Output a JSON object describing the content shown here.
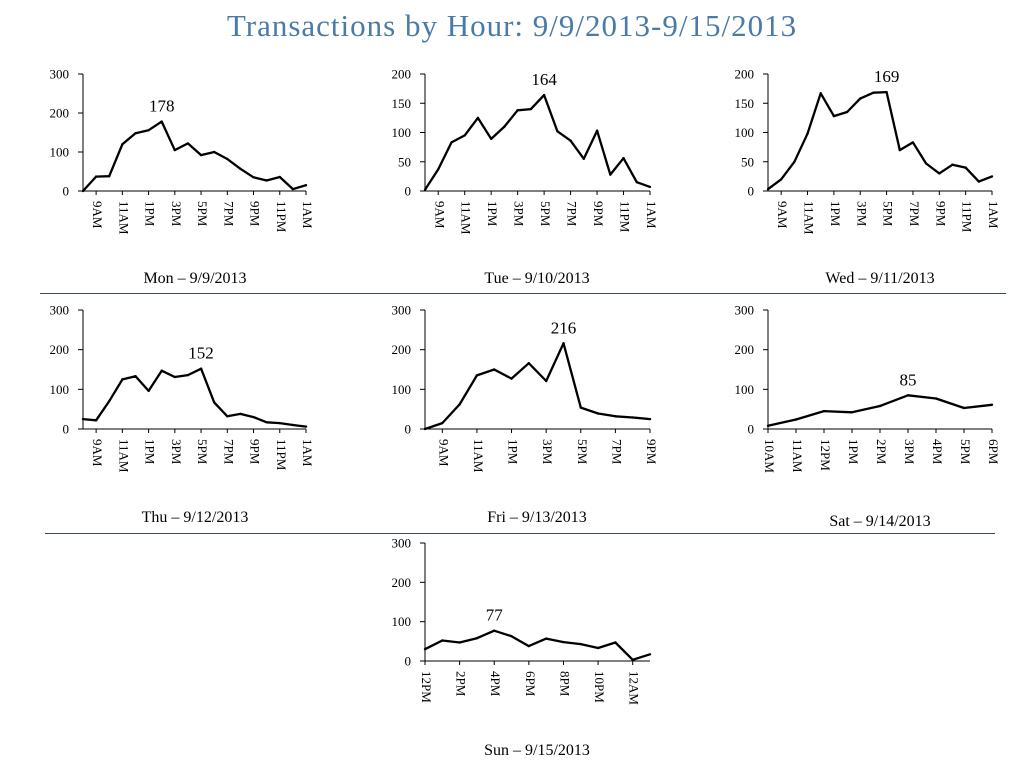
{
  "page": {
    "title": "Transactions by Hour: 9/9/2013-9/15/2013"
  },
  "colors": {
    "title": "#4a7aa8",
    "line": "#000000",
    "divider": "#3a4a5a"
  },
  "chart_data": [
    {
      "type": "line",
      "title": "Mon – 9/9/2013",
      "peak_label": "178",
      "ylim": [
        0,
        300
      ],
      "yticks": [
        0,
        100,
        200,
        300
      ],
      "xticklabels": [
        "9AM",
        "11AM",
        "1PM",
        "3PM",
        "5PM",
        "7PM",
        "9PM",
        "11PM",
        "1AM"
      ],
      "values": [
        0,
        37,
        38,
        120,
        148,
        156,
        178,
        105,
        122,
        92,
        100,
        82,
        57,
        35,
        27,
        36,
        5,
        15
      ]
    },
    {
      "type": "line",
      "title": "Tue – 9/10/2013",
      "peak_label": "164",
      "ylim": [
        0,
        200
      ],
      "yticks": [
        0,
        50,
        100,
        150,
        200
      ],
      "xticklabels": [
        "9AM",
        "11AM",
        "1PM",
        "3PM",
        "5PM",
        "7PM",
        "9PM",
        "11PM",
        "1AM"
      ],
      "values": [
        2,
        37,
        83,
        95,
        125,
        89,
        110,
        138,
        140,
        164,
        102,
        86,
        55,
        103,
        28,
        56,
        15,
        7
      ]
    },
    {
      "type": "line",
      "title": "Wed – 9/11/2013",
      "peak_label": "169",
      "ylim": [
        0,
        200
      ],
      "yticks": [
        0,
        50,
        100,
        150,
        200
      ],
      "xticklabels": [
        "9AM",
        "11AM",
        "1PM",
        "3PM",
        "5PM",
        "7PM",
        "9PM",
        "11PM",
        "1AM"
      ],
      "values": [
        3,
        20,
        50,
        98,
        167,
        128,
        135,
        158,
        168,
        169,
        70,
        83,
        47,
        30,
        45,
        40,
        16,
        25
      ]
    },
    {
      "type": "line",
      "title": "Thu – 9/12/2013",
      "peak_label": "152",
      "ylim": [
        0,
        300
      ],
      "yticks": [
        0,
        100,
        200,
        300
      ],
      "xticklabels": [
        "9AM",
        "11AM",
        "1PM",
        "3PM",
        "5PM",
        "7PM",
        "9PM",
        "11PM",
        "1AM"
      ],
      "values": [
        25,
        22,
        70,
        125,
        133,
        96,
        147,
        131,
        136,
        152,
        67,
        32,
        38,
        30,
        17,
        15,
        10,
        6
      ]
    },
    {
      "type": "line",
      "title": "Fri – 9/13/2013",
      "peak_label": "216",
      "ylim": [
        0,
        300
      ],
      "yticks": [
        0,
        100,
        200,
        300
      ],
      "xticklabels": [
        "9AM",
        "11AM",
        "1PM",
        "3PM",
        "5PM",
        "7PM",
        "9PM"
      ],
      "values": [
        0,
        15,
        62,
        135,
        150,
        127,
        166,
        121,
        216,
        54,
        39,
        32,
        29,
        25
      ]
    },
    {
      "type": "line",
      "title": "Sat – 9/14/2013",
      "peak_label": "85",
      "ylim": [
        0,
        300
      ],
      "yticks": [
        0,
        100,
        200,
        300
      ],
      "xticklabels": [
        "10AM",
        "11AM",
        "12PM",
        "1PM",
        "2PM",
        "3PM",
        "4PM",
        "5PM",
        "6PM"
      ],
      "values": [
        8,
        24,
        45,
        42,
        58,
        85,
        77,
        53,
        61
      ]
    },
    {
      "type": "line",
      "title": "Sun – 9/15/2013",
      "peak_label": "77",
      "ylim": [
        0,
        300
      ],
      "yticks": [
        0,
        100,
        200,
        300
      ],
      "xticklabels": [
        "12PM",
        "2PM",
        "4PM",
        "6PM",
        "8PM",
        "10PM",
        "12AM"
      ],
      "values": [
        30,
        52,
        47,
        58,
        77,
        63,
        38,
        57,
        48,
        43,
        33,
        47,
        3,
        17
      ]
    }
  ]
}
